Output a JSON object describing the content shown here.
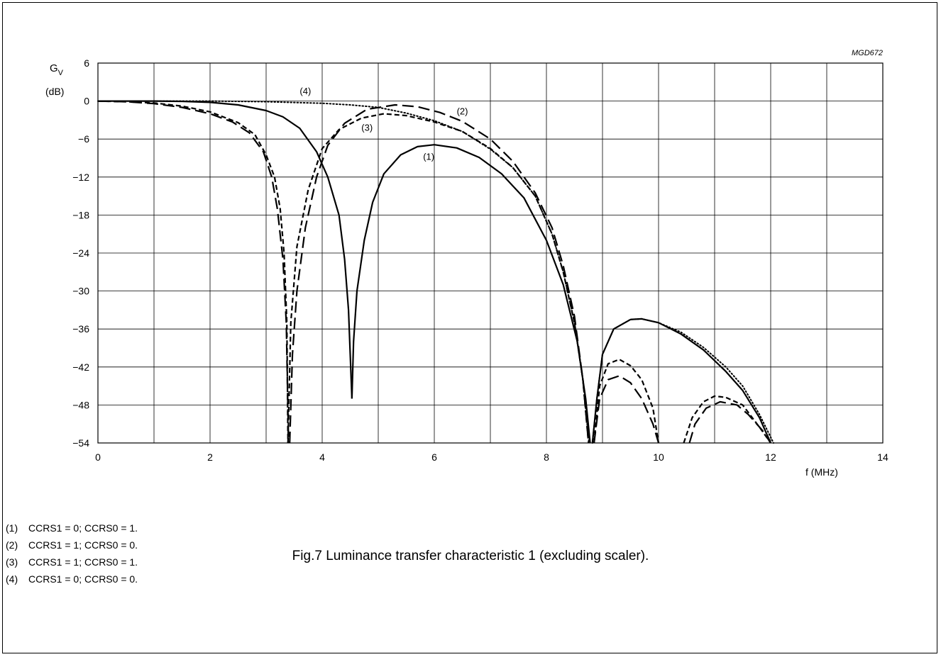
{
  "figure_id": "MGD672",
  "caption": "Fig.7  Luminance transfer characteristic 1 (excluding scaler).",
  "notes": [
    {
      "num": "(1)",
      "text": "CCRS1 = 0; CCRS0 = 1."
    },
    {
      "num": "(2)",
      "text": "CCRS1 = 1; CCRS0 = 0."
    },
    {
      "num": "(3)",
      "text": "CCRS1 = 1; CCRS0 = 1."
    },
    {
      "num": "(4)",
      "text": "CCRS1 = 0; CCRS0 = 0."
    }
  ],
  "chart_data": {
    "type": "line",
    "title": "",
    "xlabel": "f  (MHz)",
    "ylabel_main": "G",
    "ylabel_sub": "V",
    "ylabel_unit": "(dB)",
    "xlim": [
      0,
      14
    ],
    "ylim": [
      -54,
      6
    ],
    "x_ticks": [
      0,
      2,
      4,
      6,
      8,
      10,
      12,
      14
    ],
    "y_ticks": [
      6,
      0,
      -6,
      -12,
      -18,
      -24,
      -30,
      -36,
      -42,
      -48,
      -54
    ],
    "y_tick_labels": [
      "6",
      "0",
      "−6",
      "−12",
      "−18",
      "−24",
      "−30",
      "−36",
      "−42",
      "−48",
      "−54"
    ],
    "grid": true,
    "series": [
      {
        "name": "(1)",
        "style": "solid",
        "label_at": [
          5.8,
          -9.3
        ],
        "segments": [
          [
            [
              0,
              0
            ],
            [
              0.5,
              0
            ],
            [
              1,
              0
            ],
            [
              1.5,
              -0.05
            ],
            [
              2,
              -0.2
            ],
            [
              2.5,
              -0.6
            ],
            [
              3,
              -1.5
            ],
            [
              3.3,
              -2.5
            ],
            [
              3.6,
              -4.3
            ],
            [
              3.9,
              -8.0
            ],
            [
              4.1,
              -12.0
            ],
            [
              4.3,
              -18.0
            ],
            [
              4.4,
              -25.0
            ],
            [
              4.47,
              -33.0
            ],
            [
              4.5,
              -40.0
            ],
            [
              4.53,
              -47.0
            ]
          ],
          [
            [
              4.53,
              -47.0
            ],
            [
              4.56,
              -38.0
            ],
            [
              4.62,
              -30.0
            ],
            [
              4.75,
              -22.0
            ],
            [
              4.9,
              -16.0
            ],
            [
              5.1,
              -11.5
            ],
            [
              5.4,
              -8.5
            ],
            [
              5.7,
              -7.2
            ],
            [
              6.0,
              -6.9
            ],
            [
              6.4,
              -7.4
            ],
            [
              6.8,
              -8.9
            ],
            [
              7.2,
              -11.5
            ],
            [
              7.6,
              -15.3
            ],
            [
              8.0,
              -22.0
            ],
            [
              8.3,
              -29.0
            ],
            [
              8.55,
              -38.0
            ],
            [
              8.7,
              -47.0
            ],
            [
              8.78,
              -54.0
            ]
          ],
          [
            [
              8.82,
              -54.0
            ],
            [
              8.9,
              -47.0
            ],
            [
              9.0,
              -40.0
            ],
            [
              9.2,
              -36.0
            ],
            [
              9.5,
              -34.5
            ],
            [
              9.7,
              -34.4
            ],
            [
              10.0,
              -35.0
            ],
            [
              10.4,
              -36.8
            ],
            [
              10.8,
              -39.3
            ],
            [
              11.2,
              -42.7
            ],
            [
              11.5,
              -45.7
            ],
            [
              11.8,
              -50.0
            ],
            [
              12.0,
              -54.0
            ]
          ]
        ]
      },
      {
        "name": "(2)",
        "style": "long-dash",
        "label_at": [
          6.4,
          -2.1
        ],
        "segments": [
          [
            [
              0,
              0
            ],
            [
              0.5,
              -0.1
            ],
            [
              1,
              -0.4
            ],
            [
              1.5,
              -1.0
            ],
            [
              2,
              -2.0
            ],
            [
              2.4,
              -3.3
            ],
            [
              2.7,
              -5.0
            ],
            [
              2.95,
              -8.0
            ],
            [
              3.1,
              -12.0
            ],
            [
              3.2,
              -17.0
            ],
            [
              3.3,
              -25.0
            ],
            [
              3.36,
              -35.0
            ],
            [
              3.4,
              -54.0
            ]
          ],
          [
            [
              3.42,
              -54.0
            ],
            [
              3.47,
              -40.0
            ],
            [
              3.55,
              -30.0
            ],
            [
              3.7,
              -20.0
            ],
            [
              3.9,
              -12.0
            ],
            [
              4.1,
              -7.0
            ],
            [
              4.4,
              -3.5
            ],
            [
              4.8,
              -1.3
            ],
            [
              5.3,
              -0.6
            ],
            [
              5.7,
              -0.9
            ],
            [
              6.1,
              -1.8
            ],
            [
              6.5,
              -3.2
            ],
            [
              7.0,
              -6.0
            ],
            [
              7.4,
              -9.5
            ],
            [
              7.8,
              -14.5
            ],
            [
              8.1,
              -20.0
            ],
            [
              8.3,
              -26.0
            ],
            [
              8.5,
              -34.0
            ],
            [
              8.65,
              -44.0
            ],
            [
              8.75,
              -54.0
            ]
          ],
          [
            [
              8.85,
              -54.0
            ],
            [
              8.95,
              -47.0
            ],
            [
              9.1,
              -44.0
            ],
            [
              9.3,
              -43.4
            ],
            [
              9.5,
              -44.5
            ],
            [
              9.7,
              -47.0
            ],
            [
              9.9,
              -51.0
            ],
            [
              10.0,
              -54.0
            ]
          ],
          [
            [
              10.55,
              -54.0
            ],
            [
              10.65,
              -51.0
            ],
            [
              10.85,
              -48.5
            ],
            [
              11.1,
              -47.5
            ],
            [
              11.4,
              -48.0
            ],
            [
              11.6,
              -49.5
            ],
            [
              11.85,
              -52.0
            ],
            [
              12.0,
              -54.0
            ]
          ]
        ]
      },
      {
        "name": "(3)",
        "style": "short-dash",
        "label_at": [
          4.7,
          -4.7
        ],
        "segments": [
          [
            [
              0,
              0
            ],
            [
              0.5,
              -0.1
            ],
            [
              1,
              -0.3
            ],
            [
              1.5,
              -0.8
            ],
            [
              2,
              -1.7
            ],
            [
              2.5,
              -3.4
            ],
            [
              2.8,
              -5.3
            ],
            [
              3.0,
              -8.5
            ],
            [
              3.15,
              -12.0
            ],
            [
              3.25,
              -17.0
            ],
            [
              3.32,
              -24.0
            ],
            [
              3.37,
              -35.0
            ],
            [
              3.39,
              -54.0
            ]
          ],
          [
            [
              3.39,
              -54.0
            ],
            [
              3.44,
              -35.0
            ],
            [
              3.55,
              -23.0
            ],
            [
              3.75,
              -14.0
            ],
            [
              4.0,
              -7.5
            ],
            [
              4.3,
              -4.5
            ],
            [
              4.7,
              -2.7
            ],
            [
              5.1,
              -2.0
            ],
            [
              5.5,
              -2.3
            ],
            [
              6.0,
              -3.3
            ],
            [
              6.5,
              -4.8
            ],
            [
              7.0,
              -7.5
            ],
            [
              7.4,
              -10.5
            ],
            [
              7.8,
              -15.0
            ],
            [
              8.1,
              -21.0
            ],
            [
              8.3,
              -27.0
            ],
            [
              8.5,
              -35.0
            ],
            [
              8.65,
              -44.0
            ],
            [
              8.75,
              -54.0
            ]
          ],
          [
            [
              8.85,
              -54.0
            ],
            [
              8.95,
              -45.0
            ],
            [
              9.1,
              -41.5
            ],
            [
              9.3,
              -40.8
            ],
            [
              9.5,
              -41.8
            ],
            [
              9.7,
              -44.0
            ],
            [
              9.9,
              -48.5
            ],
            [
              10.0,
              -54.0
            ]
          ],
          [
            [
              10.45,
              -54.0
            ],
            [
              10.6,
              -50.0
            ],
            [
              10.8,
              -47.5
            ],
            [
              11.0,
              -46.6
            ],
            [
              11.2,
              -46.8
            ],
            [
              11.5,
              -48.0
            ],
            [
              11.8,
              -51.5
            ],
            [
              12.0,
              -54.0
            ]
          ]
        ]
      },
      {
        "name": "(4)",
        "style": "dotted",
        "label_at": [
          3.6,
          1.1
        ],
        "segments": [
          [
            [
              0,
              0
            ],
            [
              1,
              0
            ],
            [
              2,
              0
            ],
            [
              3,
              -0.1
            ],
            [
              4,
              -0.35
            ],
            [
              4.5,
              -0.6
            ],
            [
              5.0,
              -1.0
            ],
            [
              5.5,
              -1.9
            ],
            [
              6.0,
              -3.1
            ],
            [
              6.5,
              -4.8
            ],
            [
              7.0,
              -7.6
            ],
            [
              7.4,
              -10.5
            ],
            [
              7.8,
              -15.0
            ],
            [
              8.1,
              -21.0
            ],
            [
              8.3,
              -27.0
            ],
            [
              8.5,
              -35.0
            ],
            [
              8.65,
              -44.0
            ],
            [
              8.76,
              -54.0
            ]
          ],
          [
            [
              8.82,
              -54.0
            ],
            [
              8.9,
              -47.0
            ],
            [
              9.0,
              -40.0
            ],
            [
              9.2,
              -36.0
            ],
            [
              9.5,
              -34.5
            ],
            [
              9.7,
              -34.4
            ],
            [
              10.0,
              -35.0
            ],
            [
              10.4,
              -36.5
            ],
            [
              10.8,
              -38.9
            ],
            [
              11.2,
              -42.0
            ],
            [
              11.5,
              -45.0
            ],
            [
              11.8,
              -49.5
            ],
            [
              12.05,
              -54.0
            ]
          ]
        ]
      }
    ]
  }
}
